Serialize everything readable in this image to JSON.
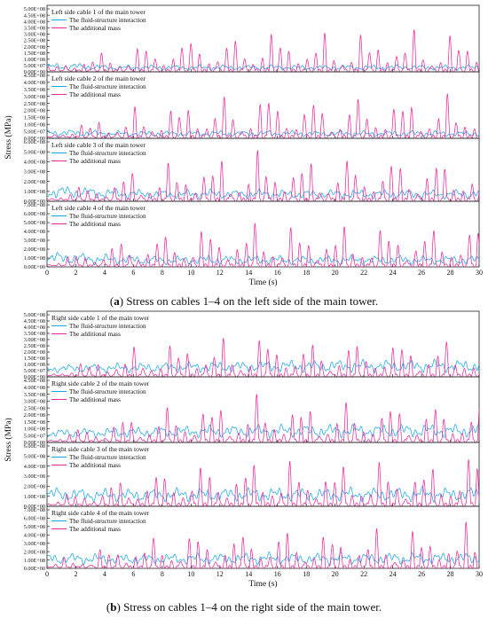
{
  "colors": {
    "fsi": "#1aa7e8",
    "mass": "#ea2a9c",
    "axis": "#222222"
  },
  "figure": {
    "caption_a_label": "a",
    "caption_a_text": " Stress on cables 1–4 on the left side of the main tower.",
    "caption_b_label": "b",
    "caption_b_text": " Stress on cables 1–4 on the right side of the main tower."
  },
  "chart_data": [
    {
      "type": "line",
      "panel": "a",
      "xlabel": "Time (s)",
      "ylabel": "Stress (MPa)",
      "xlim": [
        0,
        30
      ],
      "xticks": [
        0,
        2,
        4,
        6,
        8,
        10,
        12,
        14,
        16,
        18,
        20,
        22,
        24,
        26,
        28,
        30
      ],
      "subplots": [
        {
          "title": "Left side cable 1 of the main tower",
          "ylim": [
            0,
            500000000
          ],
          "ytick_labels": [
            "0.00E+00",
            "5.00E+07",
            "1.00E+08",
            "1.50E+08",
            "2.00E+08",
            "2.50E+08",
            "3.00E+08",
            "3.50E+08",
            "4.00E+08",
            "4.50E+08",
            "5.00E+08"
          ],
          "series": [
            {
              "name": "The fluid-structure interaction",
              "peak_values": [
                60000000,
                65000000,
                50000000,
                45000000,
                48000000,
                45000000,
                50000000,
                45000000,
                50000000,
                48000000,
                45000000,
                50000000,
                45000000,
                50000000,
                48000000,
                45000000,
                50000000
              ],
              "base": 10000000
            },
            {
              "name": "The additional mass",
              "peak_values": [
                30000000,
                120000000,
                160000000,
                210000000,
                250000000,
                300000000,
                320000000,
                280000000,
                400000000,
                310000000,
                300000000,
                330000000,
                320000000,
                340000000,
                330000000,
                320000000,
                350000000
              ],
              "base": 10000000
            }
          ]
        },
        {
          "title": "Left side cable 2 of the main tower",
          "ylim": [
            0,
            450000000
          ],
          "ytick_labels": [
            "0.00E+00",
            "5.00E+07",
            "1.00E+08",
            "1.50E+08",
            "2.00E+08",
            "2.50E+08",
            "3.00E+08",
            "3.50E+08",
            "4.00E+08",
            "4.50E+08"
          ],
          "series": [
            {
              "name": "The fluid-structure interaction",
              "peak_values": [
                60000000,
                55000000,
                50000000,
                45000000,
                48000000,
                45000000,
                50000000,
                45000000,
                50000000,
                48000000,
                45000000,
                50000000,
                45000000,
                50000000,
                48000000,
                45000000,
                50000000
              ],
              "base": 10000000
            },
            {
              "name": "The additional mass",
              "peak_values": [
                30000000,
                110000000,
                150000000,
                200000000,
                240000000,
                280000000,
                330000000,
                290000000,
                380000000,
                320000000,
                300000000,
                310000000,
                330000000,
                320000000,
                310000000,
                320000000,
                330000000
              ],
              "base": 10000000
            }
          ]
        },
        {
          "title": "Left side cable 3 of the main tower",
          "ylim": [
            0,
            600000000
          ],
          "ytick_labels": [
            "0.00E+00",
            "1.00E+08",
            "2.00E+08",
            "3.00E+08",
            "4.00E+08",
            "5.00E+08",
            "6.00E+08"
          ],
          "series": [
            {
              "name": "The fluid-structure interaction",
              "peak_values": [
                150000000,
                140000000,
                120000000,
                110000000,
                100000000,
                100000000,
                110000000,
                100000000,
                110000000,
                100000000,
                100000000,
                110000000,
                100000000,
                110000000,
                100000000,
                100000000,
                110000000
              ],
              "base": 20000000
            },
            {
              "name": "The additional mass",
              "peak_values": [
                50000000,
                150000000,
                200000000,
                330000000,
                380000000,
                430000000,
                470000000,
                450000000,
                560000000,
                480000000,
                450000000,
                470000000,
                460000000,
                480000000,
                470000000,
                460000000,
                500000000
              ],
              "base": 15000000
            }
          ]
        },
        {
          "title": "Left side cable 4 of the main tower",
          "ylim": [
            0,
            700000000
          ],
          "ytick_labels": [
            "0.00E+00",
            "1.00E+08",
            "2.00E+08",
            "3.00E+08",
            "4.00E+08",
            "5.00E+08",
            "6.00E+08",
            "7.00E+08"
          ],
          "series": [
            {
              "name": "The fluid-structure interaction",
              "peak_values": [
                160000000,
                150000000,
                130000000,
                120000000,
                110000000,
                110000000,
                120000000,
                110000000,
                120000000,
                110000000,
                110000000,
                120000000,
                110000000,
                120000000,
                110000000,
                110000000,
                120000000
              ],
              "base": 20000000
            },
            {
              "name": "The additional mass",
              "peak_values": [
                50000000,
                160000000,
                250000000,
                350000000,
                400000000,
                450000000,
                500000000,
                480000000,
                570000000,
                500000000,
                480000000,
                490000000,
                480000000,
                500000000,
                490000000,
                480000000,
                520000000
              ],
              "base": 15000000
            }
          ]
        }
      ]
    },
    {
      "type": "line",
      "panel": "b",
      "xlabel": "Time (s)",
      "ylabel": "Stress (MPa)",
      "xlim": [
        0,
        30
      ],
      "xticks": [
        0,
        2,
        4,
        6,
        8,
        10,
        12,
        14,
        16,
        18,
        20,
        22,
        24,
        26,
        28,
        30
      ],
      "subplots": [
        {
          "title": "Right side cable 1 of the main tower",
          "ylim": [
            0,
            500000000
          ],
          "ytick_labels": [
            "0.00E+00",
            "5.00E+07",
            "1.00E+08",
            "1.50E+08",
            "2.00E+08",
            "2.50E+08",
            "3.00E+08",
            "3.50E+08",
            "4.00E+08",
            "4.50E+08",
            "5.00E+08"
          ],
          "series": [
            {
              "name": "The fluid-structure interaction",
              "peak_values": [
                70000000,
                75000000,
                80000000,
                85000000,
                90000000,
                95000000,
                100000000,
                100000000,
                110000000,
                110000000,
                110000000,
                115000000,
                110000000,
                115000000,
                115000000,
                110000000,
                120000000
              ],
              "base": 30000000
            },
            {
              "name": "The additional mass",
              "peak_values": [
                30000000,
                110000000,
                160000000,
                220000000,
                270000000,
                310000000,
                330000000,
                300000000,
                380000000,
                320000000,
                300000000,
                320000000,
                310000000,
                330000000,
                310000000,
                300000000,
                330000000
              ],
              "base": 10000000
            }
          ]
        },
        {
          "title": "Right side cable 2 of the main tower",
          "ylim": [
            0,
            450000000
          ],
          "ytick_labels": [
            "0.00E+00",
            "5.00E+07",
            "1.00E+08",
            "1.50E+08",
            "2.00E+08",
            "2.50E+08",
            "3.00E+08",
            "3.50E+08",
            "4.00E+08",
            "4.50E+08"
          ],
          "series": [
            {
              "name": "The fluid-structure interaction",
              "peak_values": [
                70000000,
                75000000,
                80000000,
                85000000,
                90000000,
                95000000,
                100000000,
                100000000,
                105000000,
                105000000,
                105000000,
                110000000,
                105000000,
                110000000,
                110000000,
                105000000,
                115000000
              ],
              "base": 30000000
            },
            {
              "name": "The additional mass",
              "peak_values": [
                30000000,
                100000000,
                150000000,
                210000000,
                250000000,
                290000000,
                320000000,
                300000000,
                370000000,
                310000000,
                300000000,
                310000000,
                300000000,
                320000000,
                300000000,
                300000000,
                320000000
              ],
              "base": 10000000
            }
          ]
        },
        {
          "title": "Right side cable 3 of the main tower",
          "ylim": [
            0,
            600000000
          ],
          "ytick_labels": [
            "0.00E+00",
            "1.00E+08",
            "2.00E+08",
            "3.00E+08",
            "4.00E+08",
            "5.00E+08",
            "6.00E+08"
          ],
          "series": [
            {
              "name": "The fluid-structure interaction",
              "peak_values": [
                160000000,
                150000000,
                140000000,
                140000000,
                140000000,
                150000000,
                150000000,
                150000000,
                160000000,
                150000000,
                150000000,
                160000000,
                150000000,
                160000000,
                160000000,
                150000000,
                170000000
              ],
              "base": 40000000
            },
            {
              "name": "The additional mass",
              "peak_values": [
                50000000,
                150000000,
                220000000,
                320000000,
                380000000,
                430000000,
                460000000,
                440000000,
                540000000,
                470000000,
                440000000,
                460000000,
                450000000,
                470000000,
                460000000,
                450000000,
                620000000
              ],
              "base": 15000000
            }
          ]
        },
        {
          "title": "Right side cable 4 of the main tower",
          "ylim": [
            0,
            700000000
          ],
          "ytick_labels": [
            "0.00E+00",
            "1.00E+08",
            "2.00E+08",
            "3.00E+08",
            "4.00E+08",
            "5.00E+08",
            "6.00E+08",
            "7.00E+08"
          ],
          "series": [
            {
              "name": "The fluid-structure interaction",
              "peak_values": [
                150000000,
                150000000,
                140000000,
                140000000,
                140000000,
                150000000,
                150000000,
                150000000,
                160000000,
                150000000,
                150000000,
                160000000,
                150000000,
                160000000,
                160000000,
                150000000,
                170000000
              ],
              "base": 40000000
            },
            {
              "name": "The additional mass",
              "peak_values": [
                50000000,
                160000000,
                250000000,
                340000000,
                400000000,
                450000000,
                490000000,
                470000000,
                560000000,
                490000000,
                470000000,
                490000000,
                480000000,
                500000000,
                490000000,
                480000000,
                620000000
              ],
              "base": 15000000
            }
          ]
        }
      ]
    }
  ]
}
